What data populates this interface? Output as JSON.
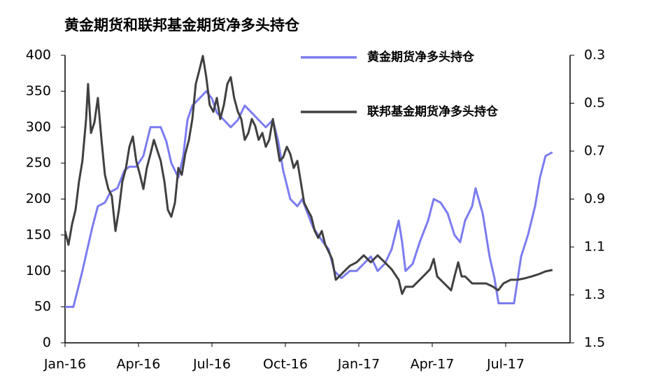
{
  "chart_data": {
    "type": "line",
    "title": "黄金期货和联邦基金期货净多头持仓",
    "xlim": [
      0,
      20.63
    ],
    "xticks": [
      {
        "value": 0,
        "label": "Jan-16"
      },
      {
        "value": 3,
        "label": "Apr-16"
      },
      {
        "value": 6,
        "label": "Jul-16"
      },
      {
        "value": 9,
        "label": "Oct-16"
      },
      {
        "value": 12,
        "label": "Jan-17"
      },
      {
        "value": 15,
        "label": "Apr-17"
      },
      {
        "value": 18,
        "label": "Jul-17"
      }
    ],
    "ylim": [
      0,
      400
    ],
    "yticks": [
      0,
      50,
      100,
      150,
      200,
      250,
      300,
      350,
      400
    ],
    "y2lim": [
      1.5,
      0.3
    ],
    "y2ticks": [
      0.3,
      0.5,
      0.7,
      0.9,
      1.1,
      1.3,
      1.5
    ],
    "series": [
      {
        "name": "黄金期货净多头持仓",
        "color": "#7b7cf0",
        "x": [
          0,
          0.34,
          0.49,
          0.71,
          0.91,
          1.11,
          1.34,
          1.63,
          1.86,
          2.14,
          2.43,
          2.63,
          2.91,
          3.2,
          3.49,
          3.91,
          4.14,
          4.34,
          4.63,
          4.83,
          5.0,
          5.2,
          5.49,
          5.77,
          6.0,
          6.2,
          6.49,
          6.77,
          7.06,
          7.34,
          7.63,
          7.91,
          8.2,
          8.49,
          8.71,
          8.91,
          9.2,
          9.49,
          9.69,
          9.91,
          10.14,
          10.34,
          10.54,
          10.77,
          11.0,
          11.29,
          11.63,
          11.91,
          12.2,
          12.49,
          12.77,
          13.06,
          13.34,
          13.63,
          13.77,
          13.91,
          14.2,
          14.49,
          14.83,
          15.06,
          15.34,
          15.63,
          15.91,
          16.14,
          16.34,
          16.63,
          16.77,
          17.06,
          17.2,
          17.34,
          17.54,
          17.71,
          17.91,
          18.34,
          18.63,
          18.91,
          19.2,
          19.4,
          19.63,
          19.91
        ],
        "values": [
          50,
          50,
          70,
          100,
          130,
          160,
          190,
          195,
          210,
          215,
          240,
          245,
          245,
          260,
          300,
          300,
          280,
          250,
          230,
          260,
          310,
          330,
          340,
          350,
          340,
          320,
          310,
          300,
          310,
          330,
          320,
          310,
          300,
          310,
          280,
          240,
          200,
          190,
          200,
          180,
          160,
          150,
          140,
          130,
          100,
          90,
          100,
          100,
          110,
          120,
          100,
          110,
          130,
          170,
          140,
          100,
          110,
          140,
          170,
          200,
          195,
          180,
          150,
          140,
          170,
          190,
          215,
          180,
          150,
          120,
          90,
          55,
          55,
          55,
          120,
          150,
          190,
          230,
          260,
          265
        ]
      },
      {
        "name": "联邦基金期货净多头持仓",
        "color": "#404040",
        "axis": "y2",
        "x": [
          0,
          0.14,
          0.29,
          0.43,
          0.57,
          0.71,
          0.86,
          0.94,
          1.06,
          1.2,
          1.34,
          1.49,
          1.63,
          1.77,
          1.91,
          2.06,
          2.2,
          2.34,
          2.49,
          2.63,
          2.77,
          2.91,
          3.06,
          3.2,
          3.34,
          3.49,
          3.63,
          3.77,
          3.91,
          4.06,
          4.2,
          4.34,
          4.49,
          4.63,
          4.77,
          4.91,
          5.06,
          5.2,
          5.34,
          5.49,
          5.63,
          5.77,
          5.91,
          6.06,
          6.2,
          6.34,
          6.49,
          6.63,
          6.77,
          6.91,
          7.06,
          7.2,
          7.34,
          7.49,
          7.63,
          7.77,
          7.91,
          8.06,
          8.2,
          8.34,
          8.49,
          8.63,
          8.77,
          8.91,
          9.06,
          9.2,
          9.34,
          9.49,
          9.63,
          9.77,
          9.91,
          10.06,
          10.2,
          10.34,
          10.49,
          10.63,
          10.77,
          10.91,
          11.06,
          11.2,
          11.34,
          11.63,
          11.91,
          12.2,
          12.49,
          12.77,
          13.06,
          13.34,
          13.63,
          13.77,
          13.91,
          14.2,
          14.49,
          14.77,
          14.91,
          15.06,
          15.2,
          15.34,
          15.63,
          15.77,
          15.91,
          16.06,
          16.2,
          16.34,
          16.63,
          16.91,
          17.2,
          17.49,
          17.69,
          17.91,
          18.2,
          18.49,
          18.77,
          19.06,
          19.34,
          19.63,
          19.91
        ],
        "values": [
          1.033,
          1.091,
          1.004,
          0.945,
          0.828,
          0.741,
          0.566,
          0.42,
          0.624,
          0.58,
          0.478,
          0.653,
          0.799,
          0.858,
          0.887,
          1.033,
          0.945,
          0.828,
          0.77,
          0.682,
          0.639,
          0.741,
          0.799,
          0.858,
          0.77,
          0.712,
          0.653,
          0.697,
          0.741,
          0.828,
          0.945,
          0.974,
          0.916,
          0.77,
          0.799,
          0.712,
          0.653,
          0.566,
          0.42,
          0.361,
          0.303,
          0.391,
          0.507,
          0.536,
          0.478,
          0.566,
          0.507,
          0.42,
          0.391,
          0.478,
          0.536,
          0.566,
          0.653,
          0.624,
          0.566,
          0.595,
          0.653,
          0.624,
          0.682,
          0.653,
          0.566,
          0.653,
          0.741,
          0.726,
          0.682,
          0.712,
          0.77,
          0.741,
          0.828,
          0.916,
          0.945,
          0.974,
          1.033,
          1.062,
          1.033,
          1.091,
          1.12,
          1.15,
          1.237,
          1.223,
          1.208,
          1.179,
          1.164,
          1.135,
          1.164,
          1.135,
          1.164,
          1.193,
          1.237,
          1.296,
          1.266,
          1.266,
          1.237,
          1.208,
          1.193,
          1.15,
          1.223,
          1.237,
          1.266,
          1.281,
          1.223,
          1.164,
          1.223,
          1.223,
          1.252,
          1.252,
          1.252,
          1.266,
          1.281,
          1.252,
          1.237,
          1.237,
          1.231,
          1.223,
          1.214,
          1.202,
          1.196
        ]
      }
    ]
  }
}
